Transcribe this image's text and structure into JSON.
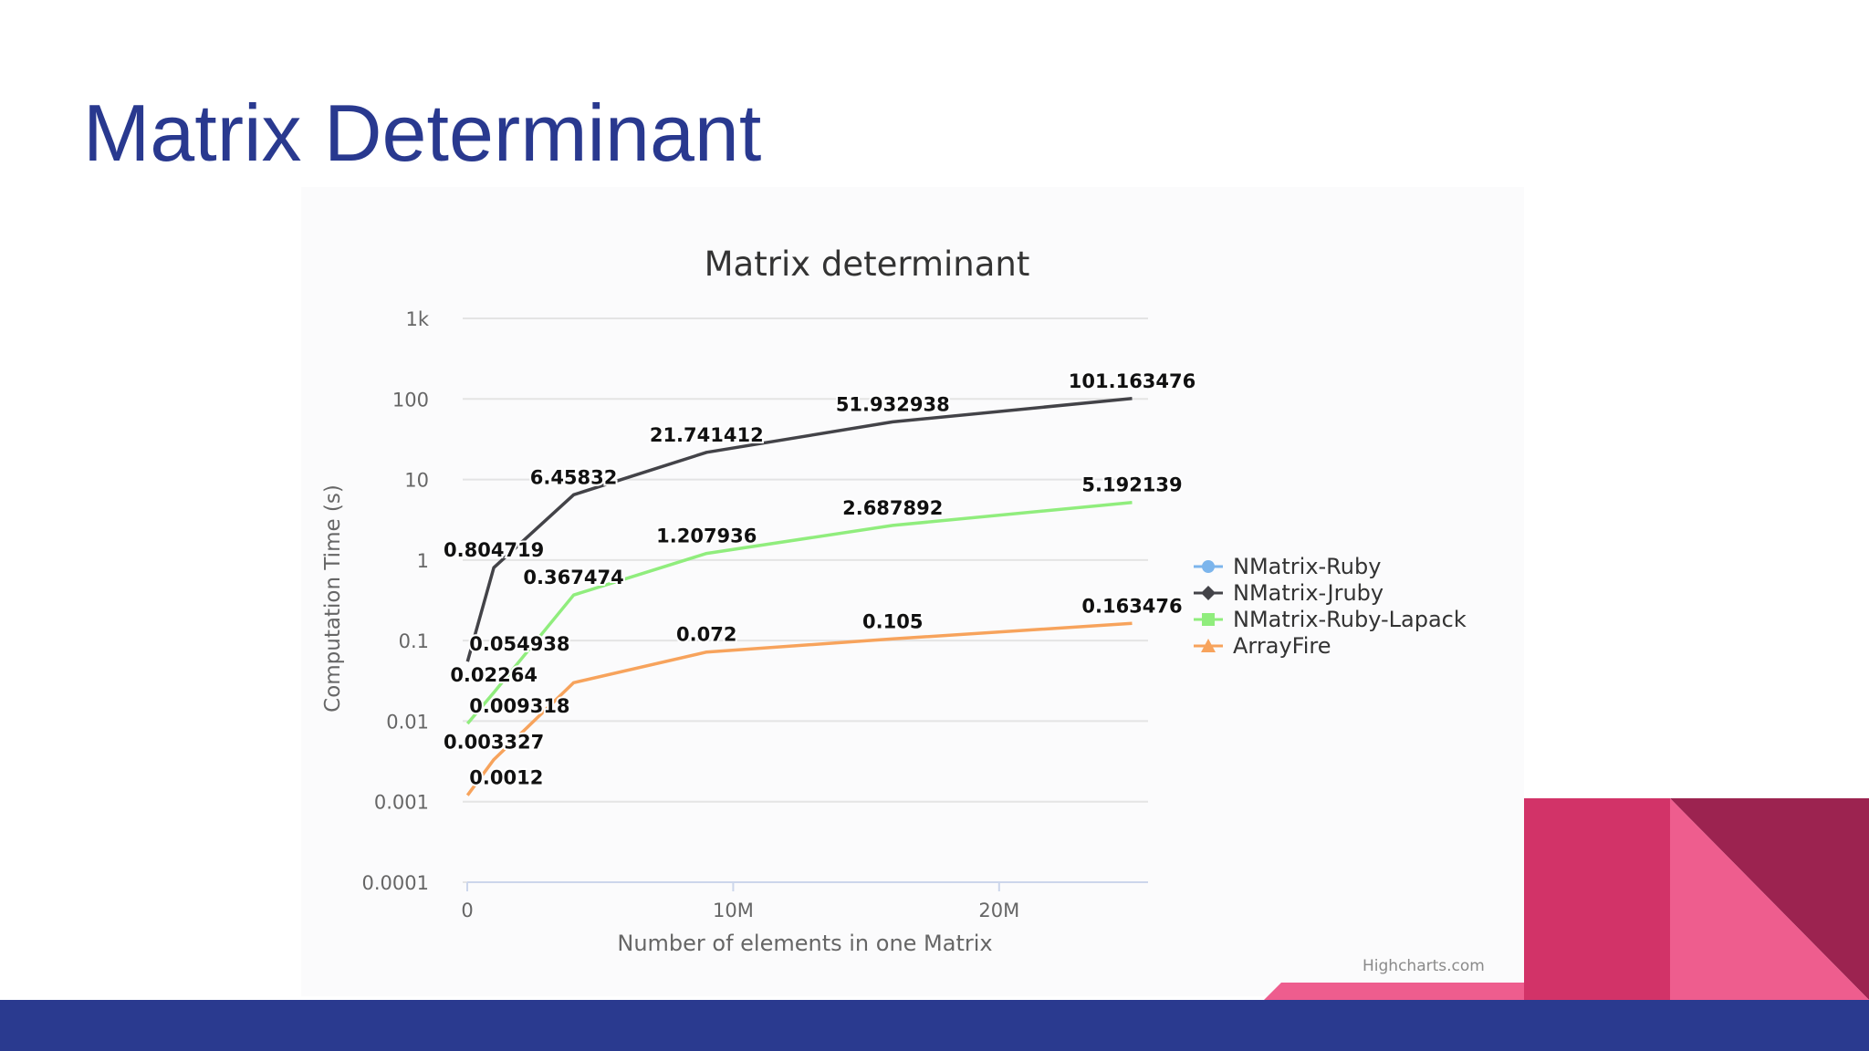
{
  "slide": {
    "title": "Matrix Determinant",
    "credit": "Highcharts.com"
  },
  "colors": {
    "title": "#29398f",
    "footer_bar": "#2a3a8f",
    "accent_pink": "#d23368",
    "accent_light_pink": "#ee5d8e",
    "accent_dark": "#9c2350"
  },
  "chart_data": {
    "type": "line",
    "title": "Matrix determinant",
    "xlabel": "Number of elements in one Matrix",
    "ylabel": "Computation Time (s)",
    "y_scale": "log",
    "ylim": [
      0.0001,
      1000
    ],
    "xlim": [
      0,
      25600000
    ],
    "grid": true,
    "legend_position": "right",
    "y_ticks": [
      {
        "v": 0.0001,
        "label": "0.0001"
      },
      {
        "v": 0.001,
        "label": "0.001"
      },
      {
        "v": 0.01,
        "label": "0.01"
      },
      {
        "v": 0.1,
        "label": "0.1"
      },
      {
        "v": 1,
        "label": "1"
      },
      {
        "v": 10,
        "label": "10"
      },
      {
        "v": 100,
        "label": "100"
      },
      {
        "v": 1000,
        "label": "1k"
      }
    ],
    "x_ticks": [
      {
        "v": 0,
        "label": "0"
      },
      {
        "v": 10000000,
        "label": "10M"
      },
      {
        "v": 20000000,
        "label": "20M"
      }
    ],
    "series": [
      {
        "name": "NMatrix-Ruby",
        "color": "#7cb5ec",
        "marker": "circle",
        "points": []
      },
      {
        "name": "NMatrix-Jruby",
        "color": "#434348",
        "marker": "diamond",
        "points": [
          {
            "x": 10000,
            "y": 0.054938,
            "label": "0.054938"
          },
          {
            "x": 1000000,
            "y": 0.804719,
            "label": "0.804719"
          },
          {
            "x": 4000000,
            "y": 6.45832,
            "label": "6.45832"
          },
          {
            "x": 9000000,
            "y": 21.741412,
            "label": "21.741412"
          },
          {
            "x": 16000000,
            "y": 51.932938,
            "label": "51.932938"
          },
          {
            "x": 25000000,
            "y": 101.163476,
            "label": "101.163476"
          }
        ]
      },
      {
        "name": "NMatrix-Ruby-Lapack",
        "color": "#90ed7d",
        "marker": "square",
        "points": [
          {
            "x": 10000,
            "y": 0.009318,
            "label": "0.009318"
          },
          {
            "x": 1000000,
            "y": 0.02264,
            "label": "0.02264"
          },
          {
            "x": 4000000,
            "y": 0.367474,
            "label": "0.367474"
          },
          {
            "x": 9000000,
            "y": 1.207936,
            "label": "1.207936"
          },
          {
            "x": 16000000,
            "y": 2.687892,
            "label": "2.687892"
          },
          {
            "x": 25000000,
            "y": 5.192139,
            "label": "5.192139"
          }
        ]
      },
      {
        "name": "ArrayFire",
        "color": "#f7a35c",
        "marker": "triangle",
        "points": [
          {
            "x": 10000,
            "y": 0.0012,
            "label": "0.0012"
          },
          {
            "x": 1000000,
            "y": 0.003327,
            "label": "0.003327"
          },
          {
            "x": 4000000,
            "y": 0.03,
            "label": ""
          },
          {
            "x": 9000000,
            "y": 0.072,
            "label": "0.072"
          },
          {
            "x": 16000000,
            "y": 0.105,
            "label": "0.105"
          },
          {
            "x": 25000000,
            "y": 0.163476,
            "label": "0.163476"
          }
        ]
      }
    ]
  }
}
